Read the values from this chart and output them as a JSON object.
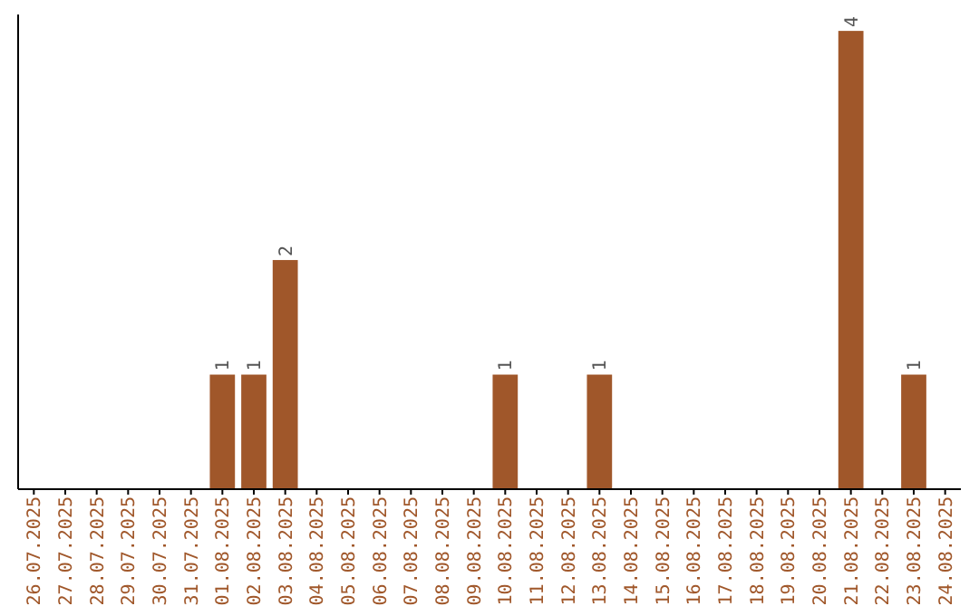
{
  "chart_data": {
    "type": "bar",
    "categories": [
      "26.07.2025",
      "27.07.2025",
      "28.07.2025",
      "29.07.2025",
      "30.07.2025",
      "31.07.2025",
      "01.08.2025",
      "02.08.2025",
      "03.08.2025",
      "04.08.2025",
      "05.08.2025",
      "06.08.2025",
      "07.08.2025",
      "08.08.2025",
      "09.08.2025",
      "10.08.2025",
      "11.08.2025",
      "12.08.2025",
      "13.08.2025",
      "14.08.2025",
      "15.08.2025",
      "16.08.2025",
      "17.08.2025",
      "18.08.2025",
      "19.08.2025",
      "20.08.2025",
      "21.08.2025",
      "22.08.2025",
      "23.08.2025",
      "24.08.2025"
    ],
    "values": [
      0,
      0,
      0,
      0,
      0,
      0,
      1,
      1,
      2,
      0,
      0,
      0,
      0,
      0,
      0,
      1,
      0,
      0,
      1,
      0,
      0,
      0,
      0,
      0,
      0,
      0,
      4,
      0,
      1,
      0
    ],
    "value_labels": [
      null,
      null,
      null,
      null,
      null,
      null,
      "1",
      "1",
      "2",
      null,
      null,
      null,
      null,
      null,
      null,
      "1",
      null,
      null,
      "1",
      null,
      null,
      null,
      null,
      null,
      null,
      null,
      "4",
      null,
      "1",
      null
    ],
    "color": "#a0572a"
  }
}
